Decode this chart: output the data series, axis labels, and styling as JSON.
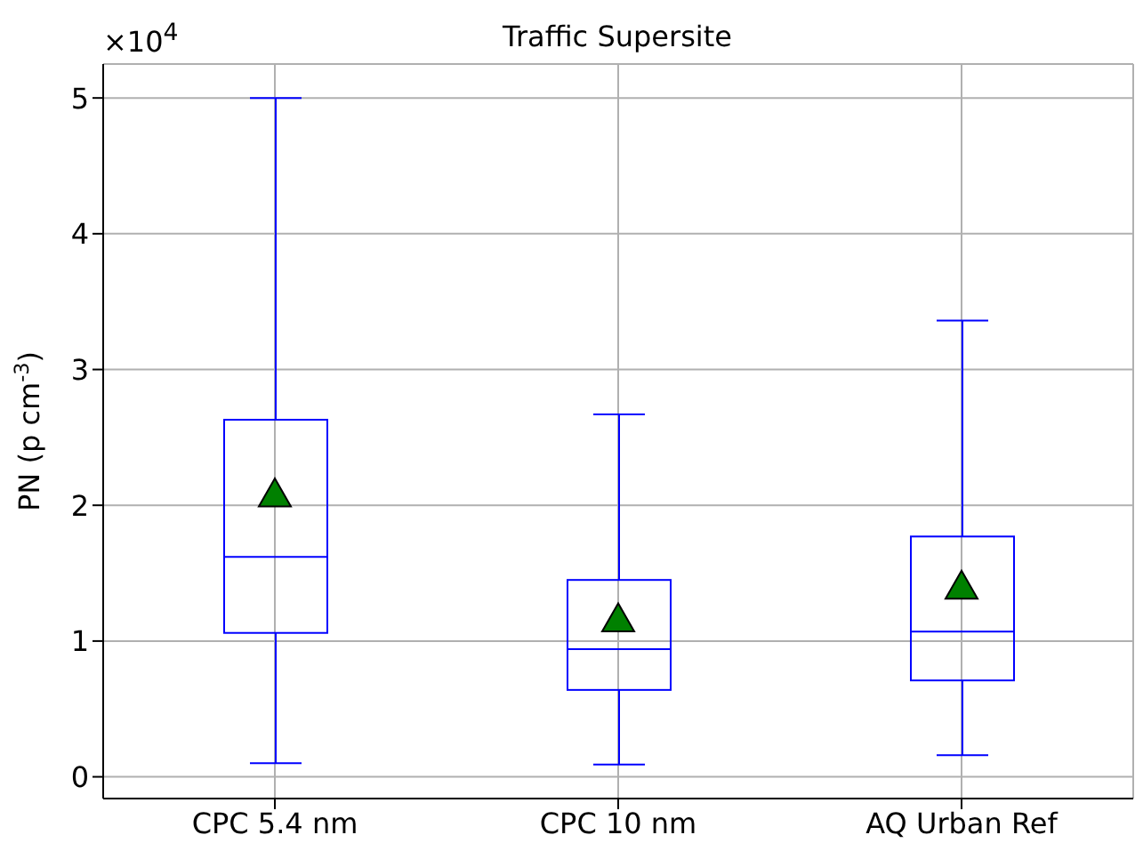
{
  "chart_data": {
    "type": "box",
    "title": "Traffic Supersite",
    "ylabel": "PN (p cm$^{-3}$)",
    "categories": [
      "CPC 5.4 nm",
      "CPC 10 nm",
      "AQ Urban Ref"
    ],
    "marker": "triangle",
    "grid": true,
    "series": [
      {
        "type": "box",
        "color": "#0000ff",
        "boxes": [
          {
            "low": 0.1,
            "q1": 1.06,
            "median": 1.62,
            "q3": 2.63,
            "high": 5.0
          },
          {
            "low": 0.09,
            "q1": 0.64,
            "median": 0.94,
            "q3": 1.45,
            "high": 2.67
          },
          {
            "low": 0.16,
            "q1": 0.71,
            "median": 1.07,
            "q3": 1.77,
            "high": 3.36
          }
        ]
      },
      {
        "type": "scatter",
        "color": "#008000",
        "x": [
          "CPC 5.4 nm",
          "CPC 10 nm",
          "AQ Urban Ref"
        ],
        "values": [
          2.08,
          1.16,
          1.4
        ]
      }
    ],
    "ylim": [
      -0.16,
      5.25
    ],
    "yticks": [
      0,
      1,
      2,
      3,
      4,
      5
    ],
    "annotations": [
      "×10$^{4}$"
    ]
  }
}
